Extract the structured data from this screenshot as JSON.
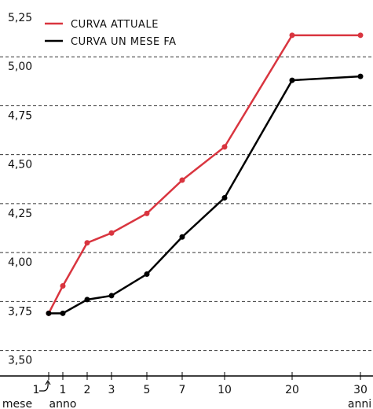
{
  "chart_data": {
    "type": "line",
    "categories": [
      "1",
      "1",
      "2",
      "3",
      "5",
      "7",
      "10",
      "20",
      "30"
    ],
    "category_units": [
      "mese",
      "anno",
      null,
      null,
      null,
      null,
      null,
      null,
      "anni"
    ],
    "series": [
      {
        "name": "CURVA ATTUALE",
        "color": "#d9353f",
        "values": [
          3.69,
          3.83,
          4.05,
          4.1,
          4.2,
          4.37,
          4.54,
          5.11,
          5.11
        ]
      },
      {
        "name": "CURVA UN MESE FA",
        "color": "#000000",
        "values": [
          3.69,
          3.69,
          3.76,
          3.78,
          3.89,
          4.08,
          4.28,
          4.88,
          4.9
        ]
      }
    ],
    "ylim": [
      3.37,
      5.29
    ],
    "yticks": [
      {
        "value": 3.5,
        "label": "3,50"
      },
      {
        "value": 3.75,
        "label": "3,75"
      },
      {
        "value": 4.0,
        "label": "4,00"
      },
      {
        "value": 4.25,
        "label": "4,25"
      },
      {
        "value": 4.5,
        "label": "4,50"
      },
      {
        "value": 4.75,
        "label": "4,75"
      },
      {
        "value": 5.0,
        "label": "5,00"
      },
      {
        "value": 5.25,
        "label": "5,25"
      }
    ],
    "grid": true,
    "legend": "top-left"
  }
}
